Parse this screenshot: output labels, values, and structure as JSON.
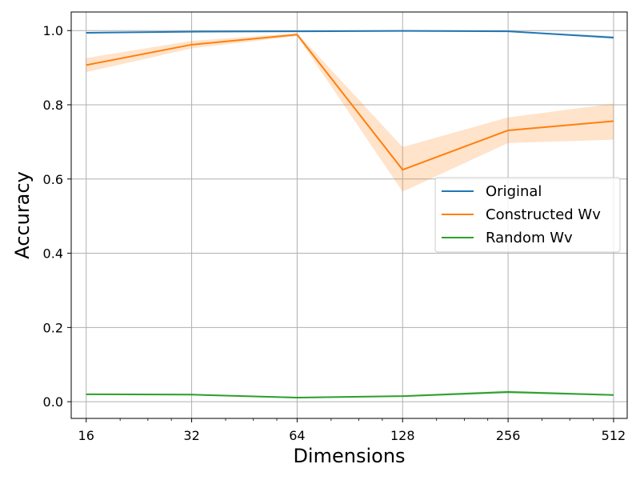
{
  "chart_data": {
    "type": "line",
    "title": "",
    "xlabel": "Dimensions",
    "ylabel": "Accuracy",
    "xscale": "log2",
    "x": [
      16,
      32,
      64,
      128,
      256,
      512
    ],
    "x_tick_labels": [
      "16",
      "32",
      "64",
      "128",
      "256",
      "512"
    ],
    "xlim": [
      14.5,
      560
    ],
    "ylim": [
      -0.045,
      1.05
    ],
    "y_ticks": [
      0.0,
      0.2,
      0.4,
      0.6,
      0.8,
      1.0
    ],
    "y_tick_labels": [
      "0.0",
      "0.2",
      "0.4",
      "0.6",
      "0.8",
      "1.0"
    ],
    "grid": true,
    "legend_position": "center-right",
    "series": [
      {
        "name": "Original",
        "color": "#1f77b4",
        "values": [
          0.994,
          0.997,
          0.998,
          0.999,
          0.998,
          0.981
        ],
        "band_lower": [
          0.993,
          0.996,
          0.997,
          0.998,
          0.997,
          0.978
        ],
        "band_upper": [
          0.995,
          0.998,
          0.999,
          1.0,
          0.999,
          0.985
        ]
      },
      {
        "name": "Constructed Wv",
        "color": "#ff7f0e",
        "values": [
          0.907,
          0.962,
          0.989,
          0.625,
          0.731,
          0.756
        ],
        "band_lower": [
          0.888,
          0.952,
          0.985,
          0.566,
          0.697,
          0.706
        ],
        "band_upper": [
          0.926,
          0.972,
          0.993,
          0.686,
          0.766,
          0.803
        ]
      },
      {
        "name": "Random Wv",
        "color": "#2ca02c",
        "values": [
          0.02,
          0.019,
          0.011,
          0.015,
          0.026,
          0.018
        ],
        "band_lower": [
          0.018,
          0.017,
          0.009,
          0.013,
          0.022,
          0.016
        ],
        "band_upper": [
          0.022,
          0.021,
          0.013,
          0.017,
          0.03,
          0.02
        ]
      }
    ]
  }
}
